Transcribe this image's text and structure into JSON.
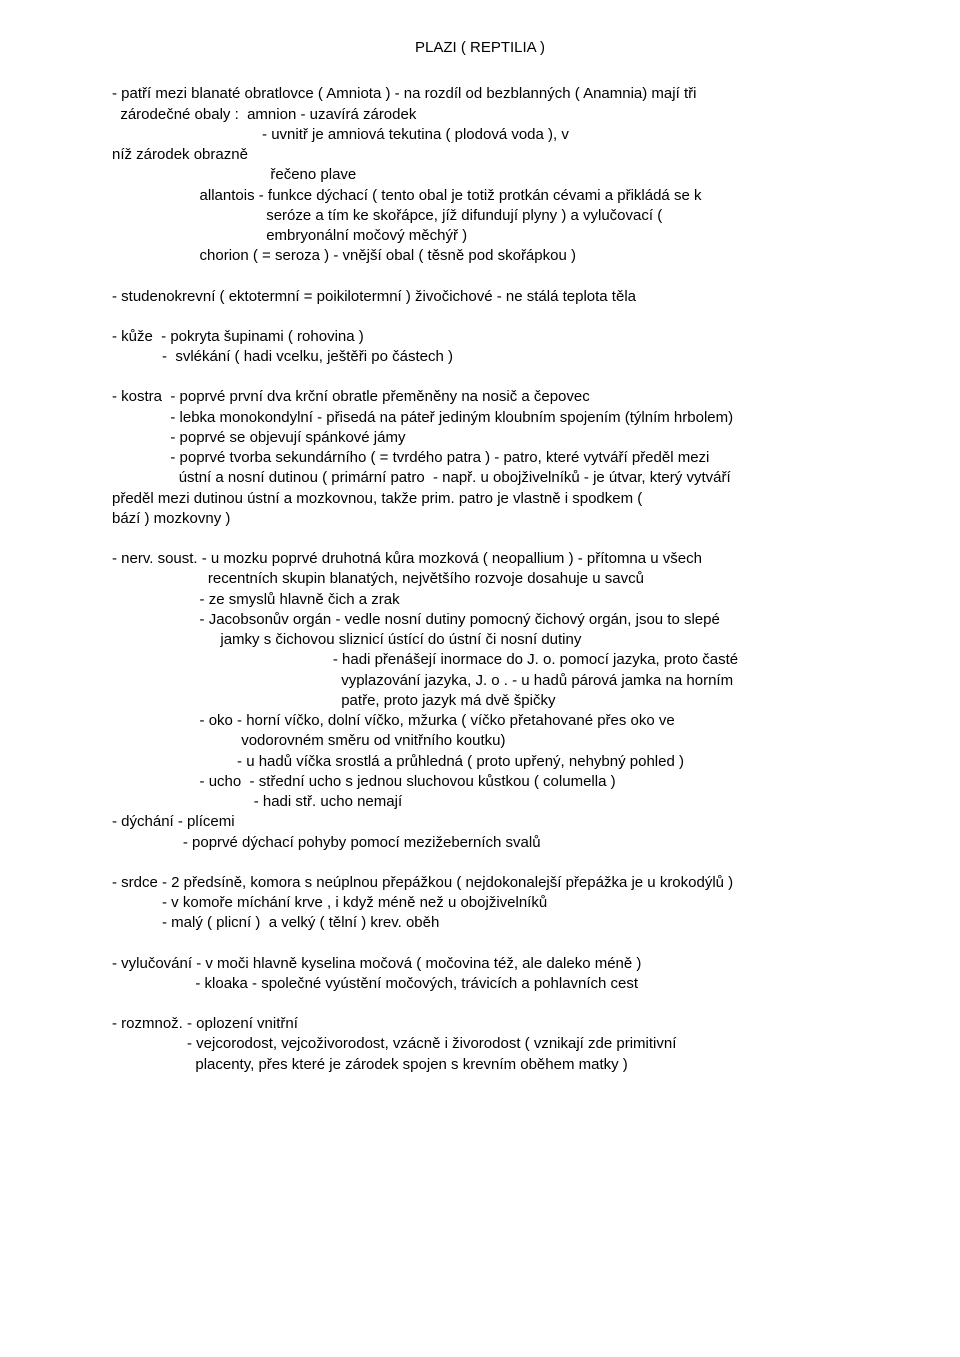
{
  "title": "PLAZI ( REPTILIA )",
  "p1": {
    "l1": "- patří mezi blanaté obratlovce ( Amniota ) - na rozdíl od bezblanných ( Anamnia) mají tři",
    "l2": "  zárodečné obaly :  amnion - uzavírá zárodek",
    "l3": "                                    - uvnitř je amniová tekutina ( plodová voda ), v",
    "l4": "níž zárodek obrazně",
    "l5": "                                      řečeno plave",
    "l6": "                     allantois - funkce dýchací ( tento obal je totiž protkán cévami a přikládá se k",
    "l7": "                                     seróze a tím ke skořápce, jíž difundují plyny ) a vylučovací (",
    "l8": "                                     embryonální močový měchýř )",
    "l9": "                     chorion ( = seroza ) - vnější obal ( těsně pod skořápkou )"
  },
  "p2": "- studenokrevní ( ektotermní = poikilotermní ) živočichové - ne stálá teplota těla",
  "p3": {
    "l1": "- kůže  - pokryta šupinami ( rohovina )",
    "l2": "            -  svlékání ( hadi vcelku, ještěři po částech )"
  },
  "p4": {
    "l1": "- kostra  - poprvé první dva krční obratle přeměněny na nosič a čepovec",
    "l2": "              - lebka monokondylní - přisedá na páteř jediným kloubním spojením (týlním hrbolem)",
    "l3": "              - poprvé se objevují spánkové jámy",
    "l4": "              - poprvé tvorba sekundárního ( = tvrdého patra ) - patro, které vytváří předěl mezi",
    "l5": "                ústní a nosní dutinou ( primární patro  - např. u obojživelníků - je útvar, který vytváří",
    "l6": "předěl mezi dutinou ústní a mozkovnou, takže prim. patro je vlastně i spodkem (",
    "l7": "bází ) mozkovny )"
  },
  "p5": {
    "l1": "- nerv. soust. - u mozku poprvé druhotná kůra mozková ( neopallium ) - přítomna u všech",
    "l2": "                       recentních skupin blanatých, největšího rozvoje dosahuje u savců",
    "l3": "                     - ze smyslů hlavně čich a zrak",
    "l4": "                     - Jacobsonův orgán - vedle nosní dutiny pomocný čichový orgán, jsou to slepé",
    "l5": "                          jamky s čichovou sliznicí ústící do ústní či nosní dutiny",
    "l6": "                                                     - hadi přenášejí inormace do J. o. pomocí jazyka, proto časté",
    "l7": "                                                       vyplazování jazyka, J. o . - u hadů párová jamka na horním",
    "l8": "                                                       patře, proto jazyk má dvě špičky",
    "l9": "                     - oko - horní víčko, dolní víčko, mžurka ( víčko přetahované přes oko ve",
    "l10": "                               vodorovném směru od vnitřního koutku)",
    "l11": "                              - u hadů víčka srostlá a průhledná ( proto upřený, nehybný pohled )",
    "l12": "                     - ucho  - střední ucho s jednou sluchovou kůstkou ( columella )",
    "l13": "                                  - hadi stř. ucho nemají",
    "l14": "- dýchání - plícemi",
    "l15": "                 - poprvé dýchací pohyby pomocí mezižeberních svalů"
  },
  "p6": {
    "l1": "- srdce - 2 předsíně, komora s neúplnou přepážkou ( nejdokonalejší přepážka je u krokodýlů )",
    "l2": "            - v komoře míchání krve , i když méně než u obojživelníků",
    "l3": "            - malý ( plicní )  a velký ( tělní ) krev. oběh"
  },
  "p7": {
    "l1": "- vylučování - v moči hlavně kyselina močová ( močovina též, ale daleko méně )",
    "l2": "                    - kloaka - společné vyústění močových, trávicích a pohlavních cest"
  },
  "p8": {
    "l1": "- rozmnož. - oplození vnitřní",
    "l2": "                  - vejcorodost, vejcoživorodost, vzácně i živorodost ( vznikají zde primitivní",
    "l3": "                    placenty, přes které je zárodek spojen s krevním oběhem matky )"
  }
}
